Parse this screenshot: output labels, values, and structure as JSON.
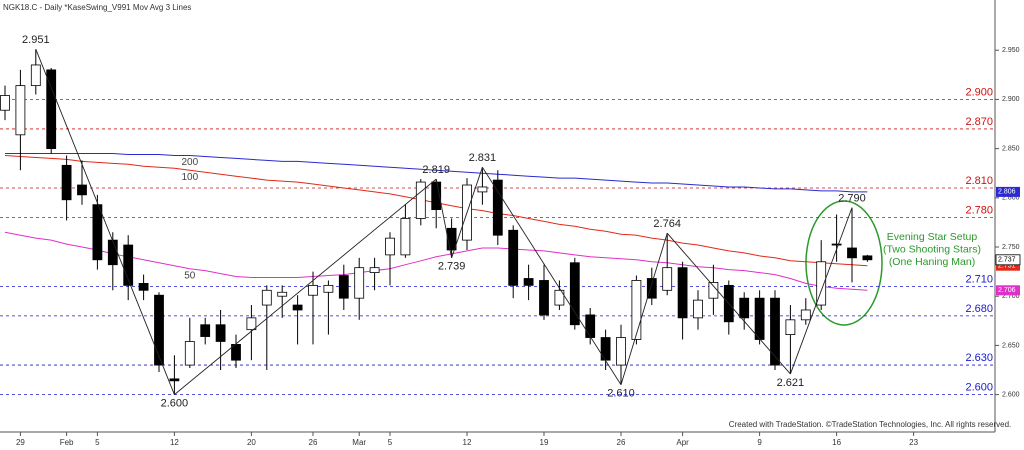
{
  "chart_data": {
    "type": "candlestick",
    "title": "NGK18.C - Daily   *KaseSwing_V991  Mov Avg 3 Lines",
    "categories": [
      null,
      "29",
      null,
      null,
      "Feb",
      null,
      "5",
      null,
      null,
      null,
      null,
      "12",
      null,
      null,
      null,
      null,
      "20",
      null,
      null,
      null,
      "26",
      null,
      null,
      "Mar",
      null,
      "5",
      null,
      null,
      null,
      null,
      "12",
      null,
      null,
      null,
      null,
      "19",
      null,
      null,
      null,
      null,
      "26",
      null,
      null,
      null,
      "Apr",
      null,
      null,
      null,
      null,
      "9",
      null,
      null,
      null,
      null,
      "16",
      null,
      null,
      null,
      null,
      "23",
      null,
      null,
      null,
      null
    ],
    "open": [
      2.889,
      2.864,
      2.914,
      2.93,
      2.833,
      2.813,
      2.793,
      2.757,
      2.752,
      2.713,
      2.701,
      2.616,
      2.63,
      2.671,
      2.671,
      2.651,
      2.666,
      2.691,
      2.7,
      2.691,
      2.701,
      2.704,
      2.721,
      2.698,
      2.724,
      2.742,
      2.742,
      2.779,
      2.816,
      2.769,
      2.757,
      2.806,
      2.818,
      2.767,
      2.718,
      2.716,
      2.691,
      2.734,
      2.681,
      2.658,
      2.63,
      2.656,
      2.718,
      2.706,
      2.729,
      2.678,
      2.698,
      2.711,
      2.698,
      2.698,
      2.698,
      2.661,
      2.676,
      2.691,
      2.753,
      2.749,
      2.741,
      null,
      null,
      null,
      null,
      null,
      null,
      null
    ],
    "high": [
      2.914,
      2.93,
      2.951,
      2.932,
      2.843,
      2.838,
      2.803,
      2.765,
      2.762,
      2.722,
      2.704,
      2.64,
      2.678,
      2.678,
      2.686,
      2.661,
      2.691,
      2.711,
      2.711,
      2.701,
      2.725,
      2.716,
      2.732,
      2.739,
      2.739,
      2.765,
      2.793,
      2.819,
      2.819,
      2.779,
      2.82,
      2.831,
      2.828,
      2.772,
      2.732,
      2.732,
      2.716,
      2.739,
      2.688,
      2.666,
      2.671,
      2.721,
      2.729,
      2.764,
      2.735,
      2.706,
      2.732,
      2.716,
      2.704,
      2.706,
      2.706,
      2.691,
      2.698,
      2.757,
      2.783,
      2.79,
      2.742,
      null,
      null,
      null,
      null,
      null,
      null,
      null
    ],
    "low": [
      2.879,
      2.828,
      2.905,
      2.845,
      2.777,
      2.793,
      2.727,
      2.706,
      2.696,
      2.696,
      2.623,
      2.6,
      2.627,
      2.651,
      2.625,
      2.627,
      2.635,
      2.625,
      2.678,
      2.651,
      2.651,
      2.661,
      2.686,
      2.676,
      2.706,
      2.711,
      2.739,
      2.772,
      2.769,
      2.739,
      2.747,
      2.793,
      2.752,
      2.698,
      2.696,
      2.676,
      2.686,
      2.666,
      2.651,
      2.625,
      2.61,
      2.651,
      2.691,
      2.701,
      2.656,
      2.666,
      2.681,
      2.661,
      2.666,
      2.651,
      2.625,
      2.621,
      2.671,
      2.686,
      2.735,
      2.714,
      2.735,
      null,
      null,
      null,
      null,
      null,
      null,
      null
    ],
    "close": [
      2.904,
      2.914,
      2.935,
      2.85,
      2.798,
      2.803,
      2.737,
      2.732,
      2.711,
      2.706,
      2.63,
      2.614,
      2.654,
      2.659,
      2.654,
      2.635,
      2.678,
      2.706,
      2.704,
      2.686,
      2.711,
      2.711,
      2.698,
      2.729,
      2.729,
      2.759,
      2.779,
      2.816,
      2.788,
      2.747,
      2.813,
      2.811,
      2.762,
      2.711,
      2.711,
      2.681,
      2.706,
      2.671,
      2.658,
      2.635,
      2.658,
      2.716,
      2.698,
      2.729,
      2.678,
      2.696,
      2.714,
      2.674,
      2.678,
      2.656,
      2.63,
      2.676,
      2.686,
      2.735,
      2.752,
      2.739,
      2.737,
      null,
      null,
      null,
      null,
      null,
      null,
      null
    ],
    "up_color": "#ffffff",
    "down_color": "#000000",
    "series": [
      {
        "name": "200",
        "color": "#2a2ad0",
        "values": [
          2.845,
          2.845,
          2.845,
          2.845,
          2.845,
          2.845,
          2.845,
          2.845,
          2.844,
          2.844,
          2.844,
          2.843,
          2.843,
          2.842,
          2.841,
          2.84,
          2.839,
          2.838,
          2.837,
          2.837,
          2.836,
          2.835,
          2.834,
          2.833,
          2.832,
          2.831,
          2.83,
          2.829,
          2.828,
          2.827,
          2.826,
          2.825,
          2.824,
          2.823,
          2.822,
          2.821,
          2.82,
          2.82,
          2.819,
          2.818,
          2.817,
          2.816,
          2.815,
          2.815,
          2.814,
          2.813,
          2.812,
          2.811,
          2.811,
          2.81,
          2.809,
          2.809,
          2.808,
          2.807,
          2.807,
          2.806,
          2.806,
          null,
          null,
          null,
          null,
          null,
          null,
          null
        ]
      },
      {
        "name": "100",
        "color": "#e02a1a",
        "values": [
          2.843,
          2.842,
          2.841,
          2.84,
          2.839,
          2.837,
          2.836,
          2.835,
          2.834,
          2.832,
          2.831,
          2.83,
          2.828,
          2.826,
          2.824,
          2.822,
          2.82,
          2.818,
          2.817,
          2.816,
          2.814,
          2.812,
          2.81,
          2.808,
          2.806,
          2.804,
          2.801,
          2.798,
          2.795,
          2.792,
          2.789,
          2.787,
          2.784,
          2.782,
          2.779,
          2.776,
          2.773,
          2.771,
          2.768,
          2.766,
          2.763,
          2.762,
          2.759,
          2.757,
          2.754,
          2.752,
          2.749,
          2.746,
          2.744,
          2.741,
          2.739,
          2.736,
          2.735,
          2.734,
          2.733,
          2.732,
          2.731,
          null,
          null,
          null,
          null,
          null,
          null,
          null
        ]
      },
      {
        "name": "50",
        "color": "#e030c8",
        "values": [
          2.765,
          2.762,
          2.759,
          2.757,
          2.753,
          2.75,
          2.747,
          2.743,
          2.74,
          2.737,
          2.734,
          2.731,
          2.728,
          2.726,
          2.723,
          2.72,
          2.719,
          2.719,
          2.719,
          2.719,
          2.72,
          2.721,
          2.722,
          2.724,
          2.726,
          2.728,
          2.732,
          2.736,
          2.74,
          2.743,
          2.746,
          2.749,
          2.749,
          2.748,
          2.747,
          2.746,
          2.744,
          2.742,
          2.74,
          2.739,
          2.738,
          2.737,
          2.735,
          2.734,
          2.732,
          2.73,
          2.729,
          2.727,
          2.726,
          2.724,
          2.722,
          2.718,
          2.713,
          2.71,
          2.708,
          2.707,
          2.706,
          null,
          null,
          null,
          null,
          null,
          null,
          null
        ]
      }
    ],
    "swings": {
      "color": "#222222",
      "values": [
        null,
        null,
        2.951,
        null,
        null,
        null,
        null,
        null,
        null,
        null,
        null,
        2.6,
        null,
        null,
        null,
        null,
        null,
        null,
        null,
        null,
        null,
        null,
        null,
        null,
        null,
        null,
        null,
        null,
        2.819,
        2.739,
        null,
        2.831,
        null,
        null,
        null,
        null,
        null,
        null,
        null,
        null,
        2.61,
        null,
        null,
        2.764,
        null,
        null,
        null,
        null,
        null,
        null,
        null,
        2.621,
        null,
        null,
        null,
        2.79,
        null,
        null,
        null,
        null,
        null,
        null,
        null,
        null
      ],
      "value_labels": [
        null,
        null,
        "2.951",
        null,
        null,
        null,
        null,
        null,
        null,
        null,
        null,
        "2.600",
        null,
        null,
        null,
        null,
        null,
        null,
        null,
        null,
        null,
        null,
        null,
        null,
        null,
        null,
        null,
        null,
        "2.819",
        "2.739",
        null,
        "2.831",
        null,
        null,
        null,
        null,
        null,
        null,
        null,
        null,
        "2.610",
        null,
        null,
        "2.764",
        null,
        null,
        null,
        null,
        null,
        null,
        null,
        "2.621",
        null,
        null,
        null,
        "2.790",
        null,
        null,
        null,
        null,
        null,
        null,
        null,
        null
      ]
    },
    "levels": [
      {
        "value": 2.9,
        "label": "2.900",
        "color": "#d01010"
      },
      {
        "value": 2.87,
        "label": "2.870",
        "color": "#d01010"
      },
      {
        "value": 2.81,
        "label": "2.810",
        "color": "#d01010"
      },
      {
        "value": 2.78,
        "label": "2.780",
        "color": "#d01010"
      },
      {
        "value": 2.71,
        "label": "2.710",
        "color": "#1a1ad0"
      },
      {
        "value": 2.68,
        "label": "2.680",
        "color": "#1a1ad0"
      },
      {
        "value": 2.63,
        "label": "2.630",
        "color": "#1a1ad0"
      },
      {
        "value": 2.6,
        "label": "2.600",
        "color": "#1a1ad0"
      }
    ],
    "ylim": [
      2.562,
      3.0
    ],
    "yticks": [
      {
        "value": 2.95,
        "label": "2.950"
      },
      {
        "value": 2.9,
        "label": "2.900"
      },
      {
        "value": 2.85,
        "label": "2.850"
      },
      {
        "value": 2.8,
        "label": "2.800"
      },
      {
        "value": 2.75,
        "label": "2.750"
      },
      {
        "value": 2.7,
        "label": "2.700"
      },
      {
        "value": 2.65,
        "label": "2.650"
      },
      {
        "value": 2.6,
        "label": "2.600"
      }
    ],
    "annotation": {
      "lines": [
        "Evening Star Setup",
        "(Two Shooting Stars)",
        "(One Haning Man)"
      ],
      "color": "#2a9a2a"
    },
    "footer": "Created with TradeStation. ©TradeStation Technologies, Inc. All rights reserved."
  }
}
